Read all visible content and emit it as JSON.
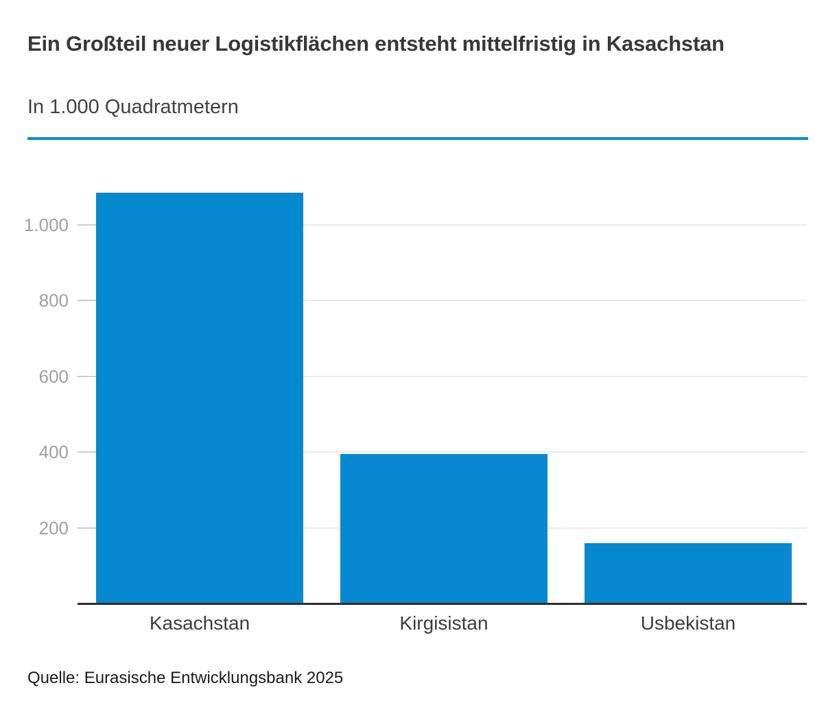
{
  "header": {
    "title": "Ein Großteil neuer Logistikflächen entsteht mittelfristig in Kasachstan",
    "subtitle": "In 1.000 Quadratmetern"
  },
  "source": "Quelle: Eurasische Entwicklungsbank 2025",
  "colors": {
    "accent": "#0689d0",
    "bar": "#0689d0",
    "axis": "#2e2e2e",
    "grid": "#ebebeb",
    "tick": "#cccccc",
    "y_label": "#a0a0a0",
    "title_text": "#383838",
    "category_text": "#3d3d3d",
    "source_text": "#1a1a1a"
  },
  "chart_data": {
    "type": "bar",
    "categories": [
      "Kasachstan",
      "Kirgisistan",
      "Usbekistan"
    ],
    "values": [
      1085,
      395,
      160
    ],
    "title": "Ein Großteil neuer Logistikflächen entsteht mittelfristig in Kasachstan",
    "subtitle": "In 1.000 Quadratmetern",
    "xlabel": "",
    "ylabel": "In 1.000 Quadratmetern",
    "ylim": [
      0,
      1190
    ],
    "yticks": [
      200,
      400,
      600,
      800,
      1000
    ],
    "ytick_labels": [
      "200",
      "400",
      "600",
      "800",
      "1.000"
    ],
    "grid": "horizontal",
    "legend": "none",
    "bar_color": "#0689d0",
    "source": "Quelle: Eurasische Entwicklungsbank 2025"
  }
}
